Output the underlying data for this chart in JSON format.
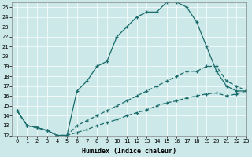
{
  "xlabel": "Humidex (Indice chaleur)",
  "xlim": [
    -0.5,
    23
  ],
  "ylim": [
    12,
    25.5
  ],
  "xticks": [
    0,
    1,
    2,
    3,
    4,
    5,
    6,
    7,
    8,
    9,
    10,
    11,
    12,
    13,
    14,
    15,
    16,
    17,
    18,
    19,
    20,
    21,
    22,
    23
  ],
  "yticks": [
    12,
    13,
    14,
    15,
    16,
    17,
    18,
    19,
    20,
    21,
    22,
    23,
    24,
    25
  ],
  "bg_color": "#cce8e8",
  "line_color": "#1a6b6b",
  "line1_x": [
    0,
    1,
    2,
    3,
    4,
    5,
    6,
    7,
    8,
    9,
    10,
    11,
    12,
    13,
    14,
    15,
    16,
    17,
    18,
    19,
    20,
    21,
    22,
    23
  ],
  "line1_y": [
    14.5,
    13.0,
    12.8,
    12.5,
    12.0,
    12.0,
    16.5,
    17.5,
    19.0,
    19.5,
    22.0,
    23.0,
    24.0,
    24.5,
    24.5,
    25.5,
    25.5,
    25.0,
    23.5,
    21.0,
    18.5,
    17.0,
    16.5,
    16.5
  ],
  "line2_x": [
    0,
    1,
    2,
    3,
    4,
    5,
    6,
    7,
    8,
    9,
    10,
    11,
    12,
    13,
    14,
    15,
    16,
    17,
    18,
    19,
    20,
    21,
    22,
    23
  ],
  "line2_y": [
    14.5,
    13.0,
    12.8,
    12.5,
    12.0,
    12.0,
    13.0,
    13.5,
    14.0,
    14.5,
    15.0,
    15.5,
    16.0,
    16.5,
    17.0,
    17.5,
    18.0,
    18.5,
    18.5,
    19.0,
    19.0,
    17.5,
    17.0,
    16.5
  ],
  "line3_x": [
    0,
    1,
    2,
    3,
    4,
    5,
    6,
    7,
    8,
    9,
    10,
    11,
    12,
    13,
    14,
    15,
    16,
    17,
    18,
    19,
    20,
    21,
    22,
    23
  ],
  "line3_y": [
    14.5,
    13.0,
    12.8,
    12.5,
    12.0,
    12.0,
    12.3,
    12.6,
    13.0,
    13.3,
    13.6,
    14.0,
    14.3,
    14.6,
    15.0,
    15.3,
    15.5,
    15.8,
    16.0,
    16.2,
    16.3,
    16.0,
    16.2,
    16.5
  ]
}
